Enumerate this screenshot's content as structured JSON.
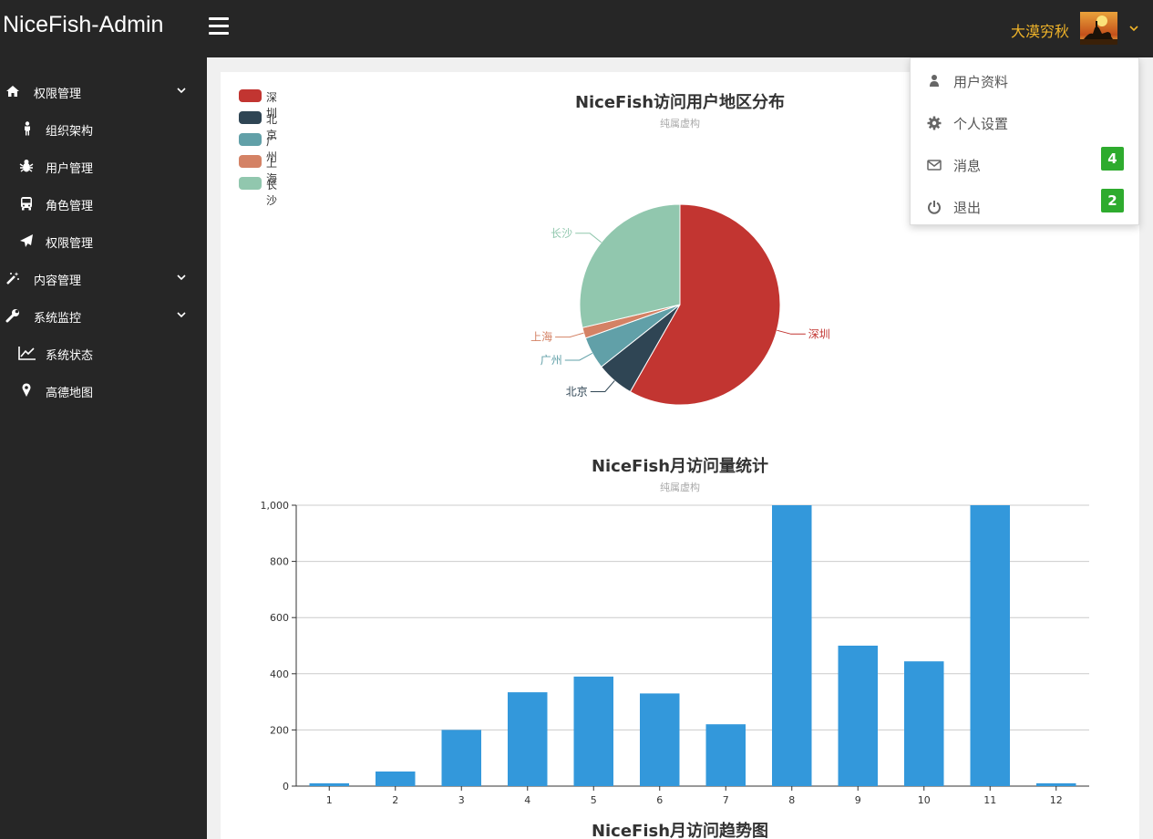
{
  "header": {
    "brand": "NiceFish-Admin",
    "username": "大漠穷秋"
  },
  "sidebar": {
    "items": [
      {
        "label": "权限管理",
        "icon": "home-icon",
        "level": 1,
        "expandable": true
      },
      {
        "label": "组织架构",
        "icon": "person-icon",
        "level": 2
      },
      {
        "label": "用户管理",
        "icon": "bug-icon",
        "level": 2
      },
      {
        "label": "角色管理",
        "icon": "bus-icon",
        "level": 2
      },
      {
        "label": "权限管理",
        "icon": "paper-plane-icon",
        "level": 2
      },
      {
        "label": "内容管理",
        "icon": "magic-wand-icon",
        "level": 1,
        "expandable": true
      },
      {
        "label": "系统监控",
        "icon": "wrench-icon",
        "level": 1,
        "expandable": true
      },
      {
        "label": "系统状态",
        "icon": "line-chart-icon",
        "level": 2
      },
      {
        "label": "高德地图",
        "icon": "map-marker-icon",
        "level": 2
      }
    ]
  },
  "user_menu": {
    "items": [
      {
        "label": "用户资料",
        "icon": "user-icon",
        "badge": ""
      },
      {
        "label": "个人设置",
        "icon": "gear-icon",
        "badge": ""
      },
      {
        "label": "消息",
        "icon": "envelope-icon",
        "badge": "4"
      },
      {
        "label": "退出",
        "icon": "power-icon",
        "badge": "2"
      }
    ]
  },
  "charts": {
    "pie_title": "NiceFish访问用户地区分布",
    "pie_subtitle": "纯属虚构",
    "bar_title": "NiceFish月访问量统计",
    "bar_subtitle": "纯属虚构",
    "trend_title": "NiceFish月访问趋势图"
  },
  "chart_data": [
    {
      "type": "pie",
      "title": "NiceFish访问用户地区分布",
      "subtitle": "纯属虚构",
      "legend_position": "top-left",
      "labels": [
        "深圳",
        "北京",
        "广州",
        "上海",
        "长沙"
      ],
      "values": [
        335,
        35,
        30,
        10,
        165
      ],
      "colors": [
        "#c23531",
        "#2f4554",
        "#61a0a8",
        "#d48265",
        "#91c7ae"
      ]
    },
    {
      "type": "bar",
      "title": "NiceFish月访问量统计",
      "subtitle": "纯属虚构",
      "categories": [
        "1",
        "2",
        "3",
        "4",
        "5",
        "6",
        "7",
        "8",
        "9",
        "10",
        "11",
        "12"
      ],
      "values": [
        10,
        52,
        200,
        334,
        390,
        330,
        220,
        1000,
        500,
        444,
        1000,
        10
      ],
      "ylim": [
        0,
        1000
      ],
      "yticks": [
        "0",
        "200",
        "400",
        "600",
        "800",
        "1,000"
      ],
      "grid": true,
      "color": "#3398db"
    }
  ]
}
